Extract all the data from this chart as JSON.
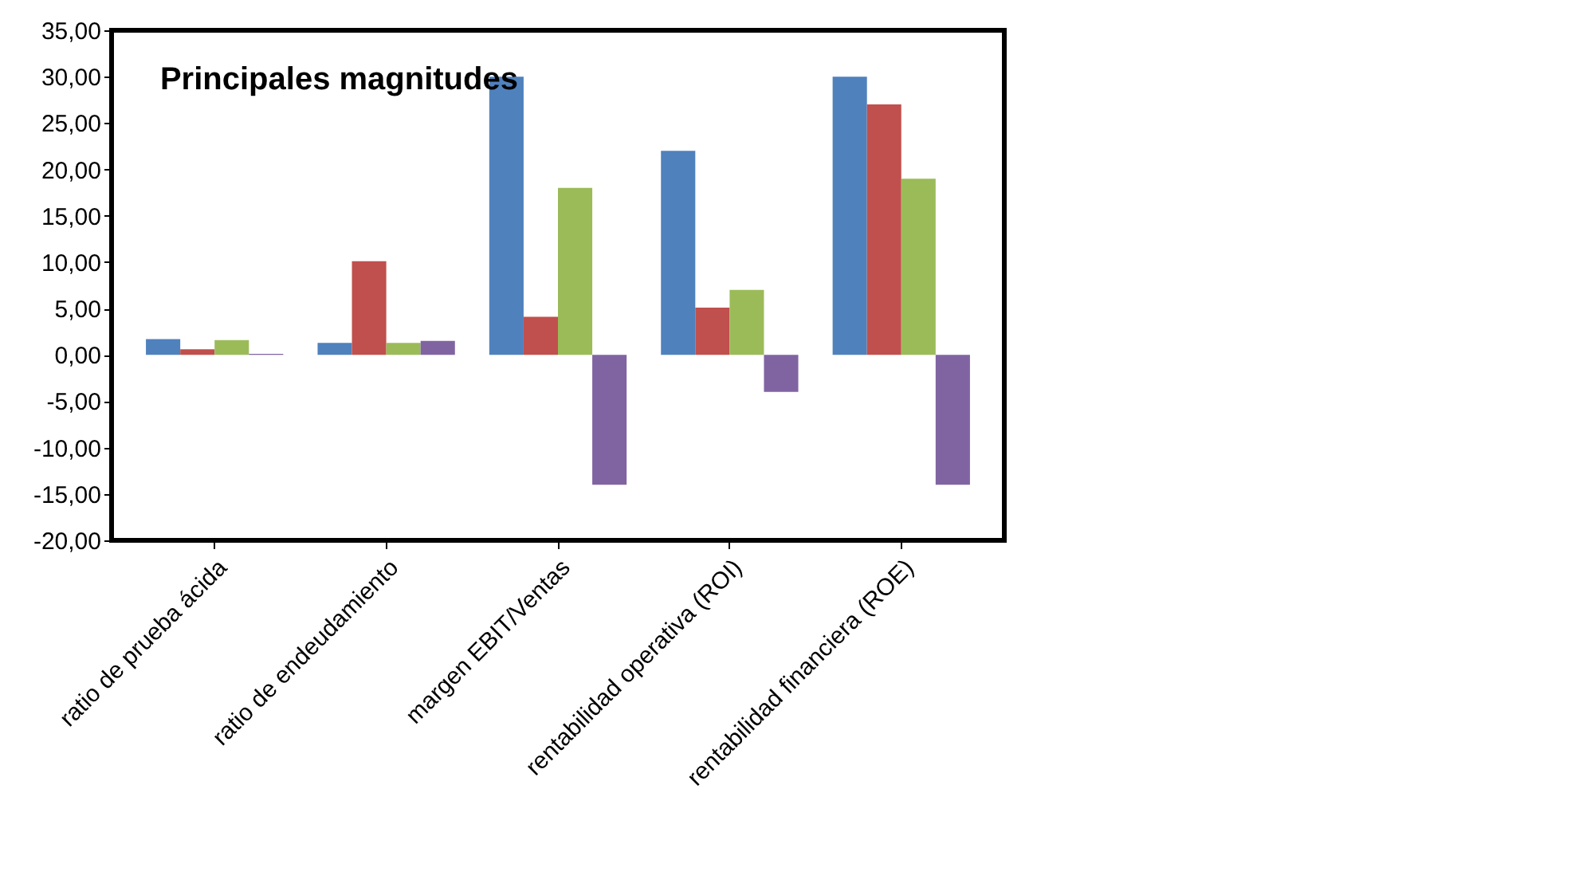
{
  "chart_data": {
    "type": "bar",
    "title": "Principales magnitudes",
    "categories": [
      "ratio de prueba ácida",
      "ratio de endeudamiento",
      "margen EBIT/Ventas",
      "rentabilidad operativa (ROI)",
      "rentabilidad financiera (ROE)"
    ],
    "series": [
      {
        "color": "#4f81bd",
        "values": [
          1.7,
          1.3,
          30,
          22,
          30
        ]
      },
      {
        "color": "#c0504d",
        "values": [
          0.6,
          10.1,
          4.1,
          5.1,
          27
        ]
      },
      {
        "color": "#9bbb59",
        "values": [
          1.6,
          1.3,
          18,
          7,
          19
        ]
      },
      {
        "color": "#8064a2",
        "values": [
          0.1,
          1.5,
          -14,
          -4,
          -14
        ]
      }
    ],
    "ylim": [
      -20,
      35
    ],
    "yticks": [
      {
        "value": -20,
        "label": "-20,00"
      },
      {
        "value": -15,
        "label": "-15,00"
      },
      {
        "value": -10,
        "label": "-10,00"
      },
      {
        "value": -5,
        "label": "-5,00"
      },
      {
        "value": 0,
        "label": "0,00"
      },
      {
        "value": 5,
        "label": "5,00"
      },
      {
        "value": 10,
        "label": "10,00"
      },
      {
        "value": 15,
        "label": "15,00"
      },
      {
        "value": 20,
        "label": "20,00"
      },
      {
        "value": 25,
        "label": "25,00"
      },
      {
        "value": 30,
        "label": "30,00"
      },
      {
        "value": 35,
        "label": "35,00"
      }
    ],
    "grid": false,
    "legend": false
  }
}
